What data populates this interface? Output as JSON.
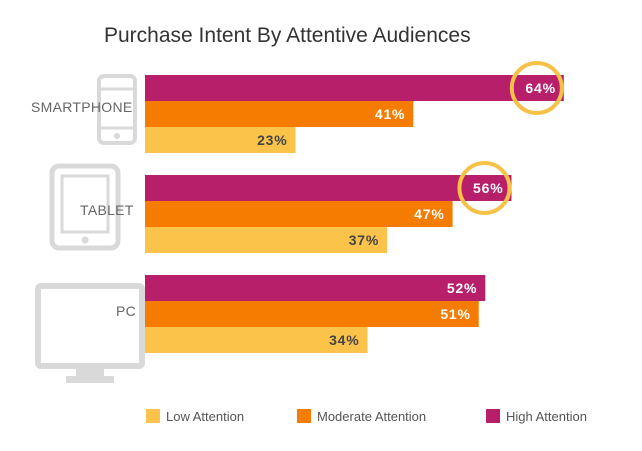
{
  "chart_data": {
    "type": "bar",
    "orientation": "horizontal",
    "title": "Purchase Intent By Attentive Audiences",
    "categories": [
      "SMARTPHONE",
      "TABLET",
      "PC"
    ],
    "category_icons": [
      "smartphone-icon",
      "tablet-icon",
      "monitor-icon"
    ],
    "series": [
      {
        "name": "High Attention",
        "color": "#b81f6b",
        "values": [
          64,
          56,
          52
        ],
        "labels": [
          "64%",
          "56%",
          "52%"
        ]
      },
      {
        "name": "Moderate Attention",
        "color": "#f57c00",
        "values": [
          41,
          47,
          51
        ],
        "labels": [
          "41%",
          "47%",
          "51%"
        ]
      },
      {
        "name": "Low Attention",
        "color": "#fbc349",
        "values": [
          23,
          37,
          34
        ],
        "labels": [
          "23%",
          "37%",
          "34%"
        ]
      }
    ],
    "legend": {
      "placement": "bottom",
      "order": [
        "Low Attention",
        "Moderate Attention",
        "High Attention"
      ]
    },
    "highlight": {
      "style": "circle",
      "color": "#f7c046",
      "series": "High Attention",
      "categories": [
        "SMARTPHONE",
        "TABLET"
      ]
    },
    "xlim": [
      0,
      68
    ],
    "grid": false,
    "value_label_colors": {
      "High Attention": "#ffffff",
      "Moderate Attention": "#ffffff",
      "Low Attention": "#444444"
    }
  }
}
